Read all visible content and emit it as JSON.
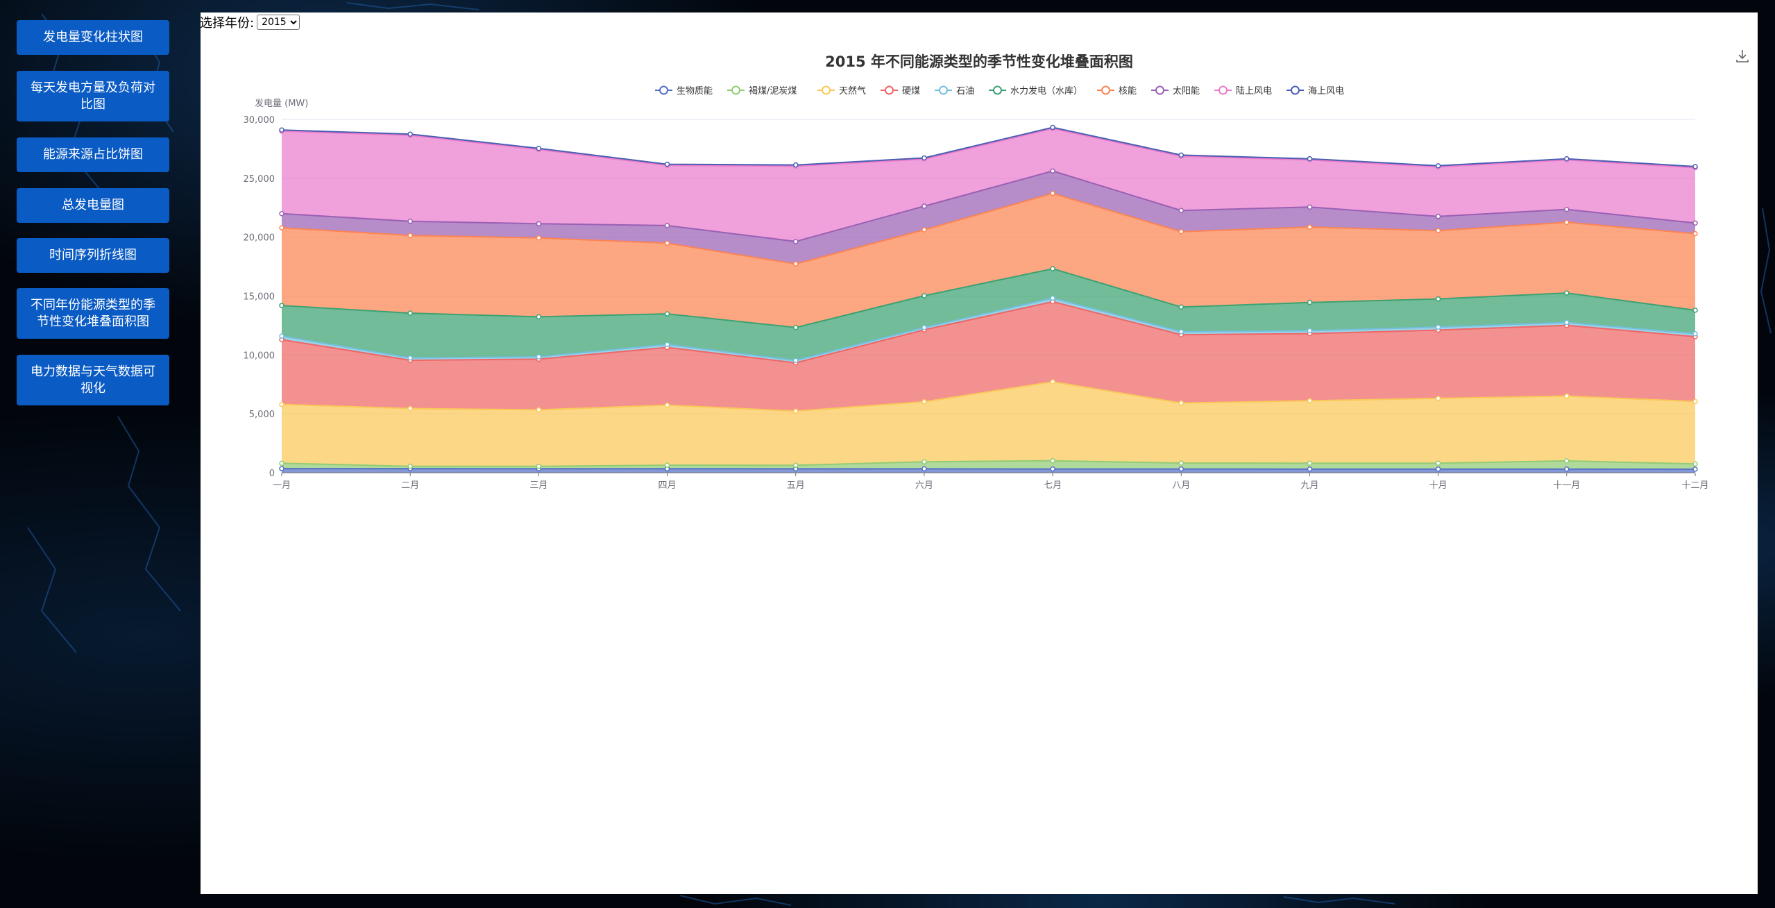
{
  "sidebar": {
    "items": [
      {
        "label": "发电量变化柱状图"
      },
      {
        "label": "每天发电方量及负荷对比图"
      },
      {
        "label": "能源来源占比饼图"
      },
      {
        "label": "总发电量图"
      },
      {
        "label": "时间序列折线图"
      },
      {
        "label": "不同年份能源类型的季节性变化堆叠面积图"
      },
      {
        "label": "电力数据与天气数据可视化"
      }
    ]
  },
  "year_select": {
    "label": "选择年份:",
    "value": "2015"
  },
  "colors": {
    "nav_button": "#0a5bc4",
    "panel": "#ffffff"
  },
  "chart_data": {
    "type": "area",
    "stacked": true,
    "title": "2015 年不同能源类型的季节性变化堆叠面积图",
    "ylabel": "发电量 (MW)",
    "xlabel": "",
    "ylim": [
      0,
      30000
    ],
    "yticks": [
      "0",
      "5,000",
      "10,000",
      "15,000",
      "20,000",
      "25,000",
      "30,000"
    ],
    "grid": true,
    "legend_position": "top-center",
    "toolbox": "download-icon",
    "categories": [
      "一月",
      "二月",
      "三月",
      "四月",
      "五月",
      "六月",
      "七月",
      "八月",
      "九月",
      "十月",
      "十一月",
      "十二月"
    ],
    "series": [
      {
        "name": "生物质能",
        "color": "#5470c6",
        "values": [
          350,
          350,
          340,
          340,
          330,
          330,
          320,
          320,
          310,
          310,
          310,
          300
        ]
      },
      {
        "name": "褐煤/泥炭煤",
        "color": "#91cc75",
        "values": [
          450,
          200,
          200,
          300,
          300,
          600,
          700,
          500,
          500,
          500,
          700,
          450
        ]
      },
      {
        "name": "天然气",
        "color": "#fac858",
        "values": [
          5000,
          4900,
          4800,
          5100,
          4600,
          5100,
          6700,
          5100,
          5300,
          5500,
          5500,
          5300
        ]
      },
      {
        "name": "硬煤",
        "color": "#ee6666",
        "values": [
          5500,
          4100,
          4300,
          4900,
          4100,
          6100,
          6800,
          5800,
          5700,
          5800,
          6000,
          5500
        ]
      },
      {
        "name": "石油",
        "color": "#73c0de",
        "values": [
          300,
          200,
          200,
          250,
          200,
          200,
          300,
          250,
          250,
          250,
          250,
          250
        ]
      },
      {
        "name": "水力发电（水库）",
        "color": "#3ba272",
        "values": [
          2600,
          3800,
          3400,
          2600,
          2800,
          2700,
          2500,
          2100,
          2400,
          2400,
          2500,
          2000
        ]
      },
      {
        "name": "核能",
        "color": "#fc8452",
        "values": [
          6600,
          6600,
          6700,
          6000,
          5400,
          5600,
          6400,
          6400,
          6400,
          5800,
          6000,
          6500
        ]
      },
      {
        "name": "太阳能",
        "color": "#9a60b4",
        "values": [
          1200,
          1200,
          1200,
          1500,
          1900,
          2000,
          1900,
          1800,
          1700,
          1200,
          1100,
          900
        ]
      },
      {
        "name": "陆上风电",
        "color": "#ea7ccc",
        "values": [
          7000,
          7300,
          6300,
          5100,
          6400,
          4000,
          3600,
          4600,
          4000,
          4200,
          4200,
          4700
        ]
      },
      {
        "name": "海上风电",
        "color": "#4a5fb3",
        "values": [
          100,
          100,
          100,
          100,
          100,
          100,
          100,
          100,
          100,
          100,
          100,
          100
        ]
      }
    ]
  }
}
